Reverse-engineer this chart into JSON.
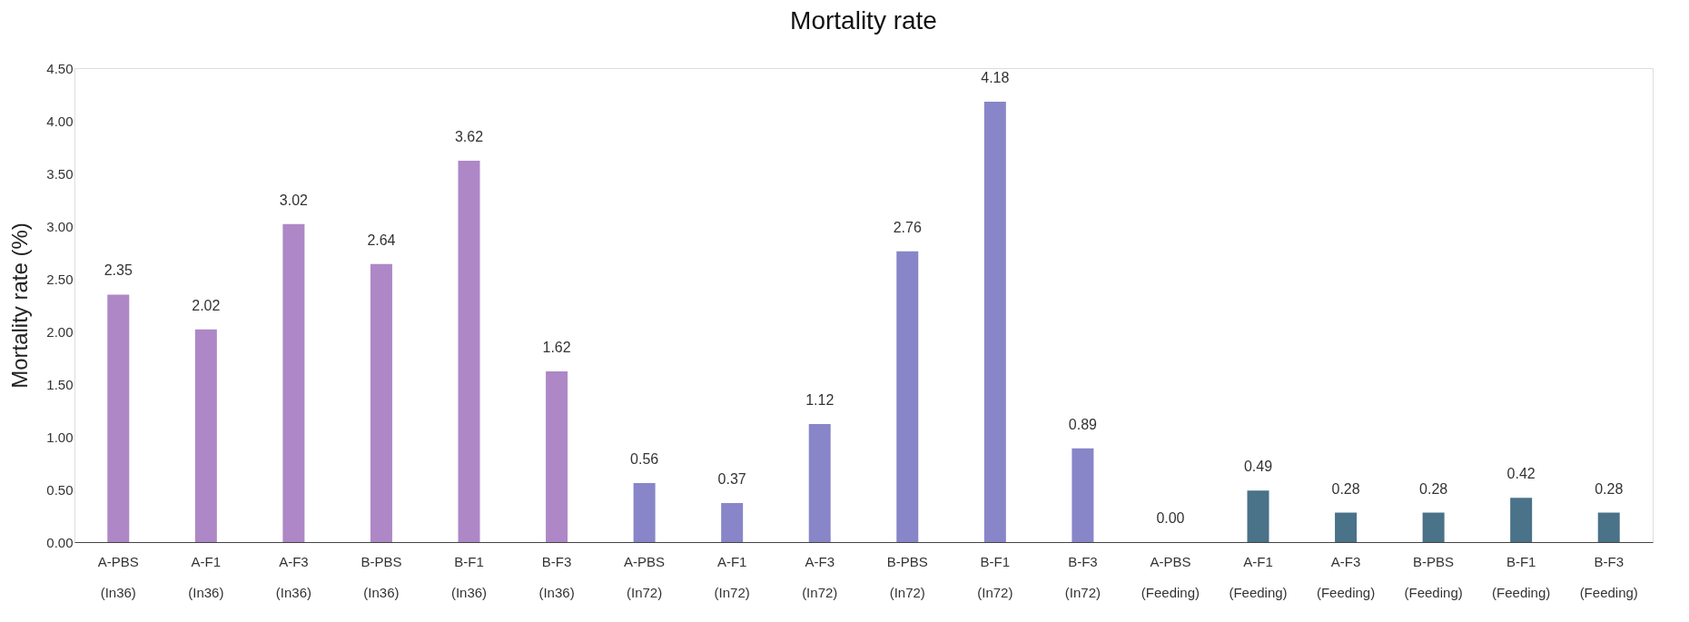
{
  "chart_data": {
    "type": "bar",
    "title": "Mortality rate",
    "ylabel": "Mortality rate  (%)",
    "categories": [
      "A-PBS (In36)",
      "A-F1 (In36)",
      "A-F3 (In36)",
      "B-PBS (In36)",
      "B-F1 (In36)",
      "B-F3 (In36)",
      "A-PBS (In72)",
      "A-F1 (In72)",
      "A-F3 (In72)",
      "B-PBS (In72)",
      "B-F1 (In72)",
      "B-F3 (In72)",
      "A-PBS (Feeding)",
      "A-F1 (Feeding)",
      "A-F3 (Feeding)",
      "B-PBS (Feeding)",
      "B-F1 (Feeding)",
      "B-F3 (Feeding)"
    ],
    "values": [
      2.35,
      2.02,
      3.02,
      2.64,
      3.62,
      1.62,
      0.56,
      0.37,
      1.12,
      2.76,
      4.18,
      0.89,
      0.0,
      0.49,
      0.28,
      0.28,
      0.42,
      0.28
    ],
    "colors": [
      "#ae87c6",
      "#ae87c6",
      "#ae87c6",
      "#ae87c6",
      "#ae87c6",
      "#ae87c6",
      "#8886c8",
      "#8886c8",
      "#8886c8",
      "#8886c8",
      "#8886c8",
      "#8886c8",
      "#4a7288",
      "#4a7288",
      "#4a7288",
      "#4a7288",
      "#4a7288",
      "#4a7288"
    ],
    "value_labels": [
      "2.35",
      "2.02",
      "3.02",
      "2.64",
      "3.62",
      "1.62",
      "0.56",
      "0.37",
      "1.12",
      "2.76",
      "4.18",
      "0.89",
      "0.00",
      "0.49",
      "0.28",
      "0.28",
      "0.42",
      "0.28"
    ],
    "ylim": [
      0,
      4.5
    ],
    "yticks": [
      {
        "value": 0,
        "label": "0.00"
      },
      {
        "value": 0.5,
        "label": "0.50"
      },
      {
        "value": 1,
        "label": "1.00"
      },
      {
        "value": 1.5,
        "label": "1.50"
      },
      {
        "value": 2,
        "label": "2.00"
      },
      {
        "value": 2.5,
        "label": "2.50"
      },
      {
        "value": 3,
        "label": "3.00"
      },
      {
        "value": 3.5,
        "label": "3.50"
      },
      {
        "value": 4,
        "label": "4.00"
      },
      {
        "value": 4.5,
        "label": "4.50"
      }
    ],
    "grid": false
  }
}
